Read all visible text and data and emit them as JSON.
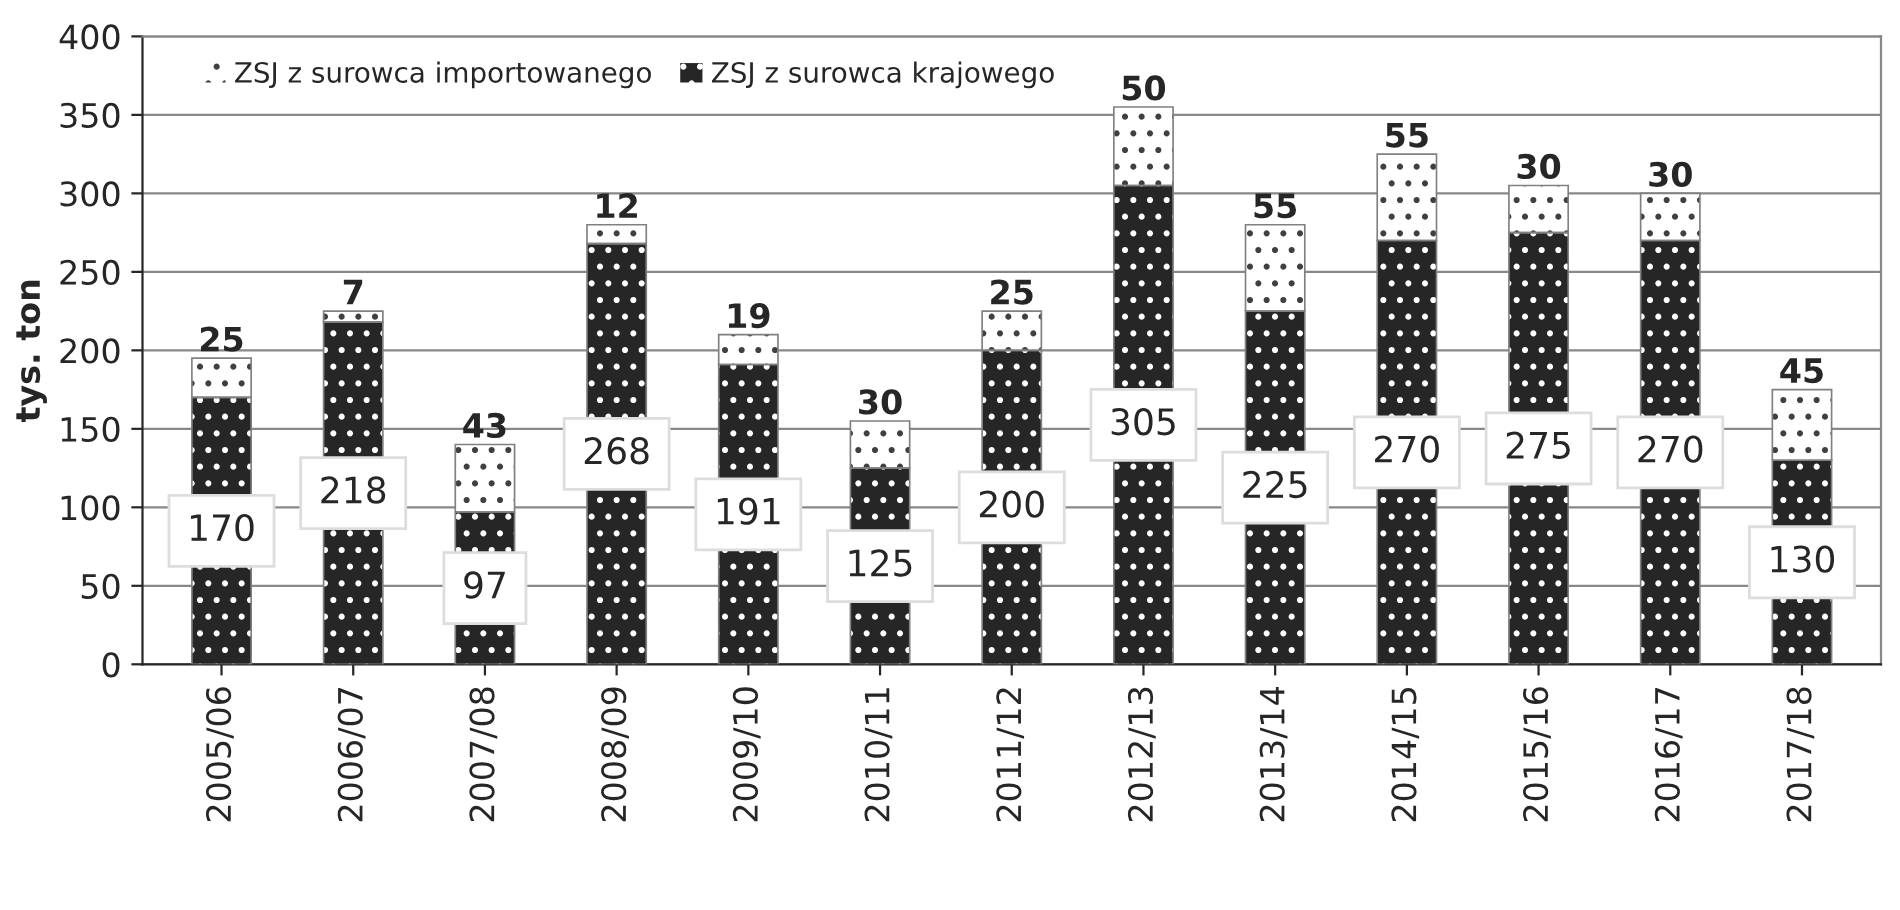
{
  "chart_data": {
    "type": "bar",
    "stacked": true,
    "ylabel": "tys. ton",
    "categories": [
      "2005/06",
      "2006/07",
      "2007/08",
      "2008/09",
      "2009/10",
      "2010/11",
      "2011/12",
      "2012/13",
      "2013/14",
      "2014/15",
      "2015/16",
      "2016/17",
      "2017/18"
    ],
    "series": [
      {
        "name": "ZSJ z surowca krajowego",
        "color": "#262626",
        "values": [
          170,
          218,
          97,
          268,
          191,
          125,
          200,
          305,
          225,
          270,
          275,
          270,
          130
        ]
      },
      {
        "name": "ZSJ z surowca importowanego",
        "color": "#ffffff",
        "values": [
          25,
          7,
          43,
          12,
          19,
          30,
          25,
          50,
          55,
          55,
          30,
          30,
          45
        ]
      }
    ],
    "ylim": [
      0,
      400
    ],
    "yticks": [
      0,
      50,
      100,
      150,
      200,
      250,
      300,
      350,
      400
    ],
    "grid": "y",
    "legend": "top",
    "data_labels": true
  }
}
